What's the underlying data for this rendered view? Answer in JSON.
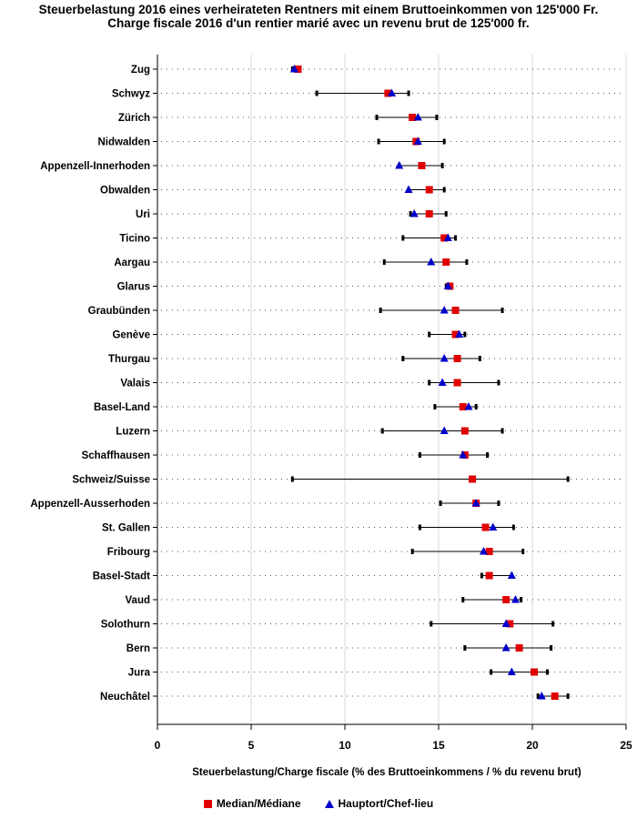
{
  "title_line1": "Steuerbelastung 2016 eines verheirateten Rentners mit einem Bruttoeinkommen von 125'000 Fr.",
  "title_line2": "Charge fiscale 2016 d'un rentier marié avec un revenu brut de 125'000 fr.",
  "colors": {
    "median": "#e00000",
    "capital": "#0000cc",
    "range": "#000000",
    "grid": "#d9d9d9"
  },
  "chart_data": {
    "type": "scatter",
    "xlabel": "Steuerbelastung/Charge fiscale (% des Bruttoeinkommens / % du revenu brut)",
    "ylabel": "",
    "xlim": [
      0,
      25
    ],
    "xticks": [
      0,
      5,
      10,
      15,
      20,
      25
    ],
    "legend": [
      {
        "name": "Median/Médiane",
        "marker": "square"
      },
      {
        "name": "Hauptort/Chef-lieu",
        "marker": "triangle"
      }
    ],
    "rows": [
      {
        "label": "Zug",
        "min": 7.2,
        "max": 7.6,
        "median": 7.5,
        "capital": 7.3
      },
      {
        "label": "Schwyz",
        "min": 8.5,
        "max": 13.4,
        "median": 12.3,
        "capital": 12.5
      },
      {
        "label": "Zürich",
        "min": 11.7,
        "max": 14.9,
        "median": 13.6,
        "capital": 13.9
      },
      {
        "label": "Nidwalden",
        "min": 11.8,
        "max": 15.3,
        "median": 13.8,
        "capital": 13.9
      },
      {
        "label": "Appenzell-Innerhoden",
        "min": 12.9,
        "max": 15.2,
        "median": 14.1,
        "capital": 12.9
      },
      {
        "label": "Obwalden",
        "min": 13.4,
        "max": 15.3,
        "median": 14.5,
        "capital": 13.4
      },
      {
        "label": "Uri",
        "min": 13.5,
        "max": 15.4,
        "median": 14.5,
        "capital": 13.7
      },
      {
        "label": "Ticino",
        "min": 13.1,
        "max": 15.9,
        "median": 15.3,
        "capital": 15.5
      },
      {
        "label": "Aargau",
        "min": 12.1,
        "max": 16.5,
        "median": 15.4,
        "capital": 14.6
      },
      {
        "label": "Glarus",
        "min": 15.4,
        "max": 15.7,
        "median": 15.6,
        "capital": 15.5
      },
      {
        "label": "Graubünden",
        "min": 11.9,
        "max": 18.4,
        "median": 15.9,
        "capital": 15.3
      },
      {
        "label": "Genève",
        "min": 14.5,
        "max": 16.4,
        "median": 15.9,
        "capital": 16.1
      },
      {
        "label": "Thurgau",
        "min": 13.1,
        "max": 17.2,
        "median": 16.0,
        "capital": 15.3
      },
      {
        "label": "Valais",
        "min": 14.5,
        "max": 18.2,
        "median": 16.0,
        "capital": 15.2
      },
      {
        "label": "Basel-Land",
        "min": 14.8,
        "max": 17.0,
        "median": 16.3,
        "capital": 16.6
      },
      {
        "label": "Luzern",
        "min": 12.0,
        "max": 18.4,
        "median": 16.4,
        "capital": 15.3
      },
      {
        "label": "Schaffhausen",
        "min": 14.0,
        "max": 17.6,
        "median": 16.4,
        "capital": 16.3
      },
      {
        "label": "Schweiz/Suisse",
        "min": 7.2,
        "max": 21.9,
        "median": 16.8,
        "capital": null
      },
      {
        "label": "Appenzell-Ausserhoden",
        "min": 15.1,
        "max": 18.2,
        "median": 17.0,
        "capital": 17.0
      },
      {
        "label": "St. Gallen",
        "min": 14.0,
        "max": 19.0,
        "median": 17.5,
        "capital": 17.9
      },
      {
        "label": "Fribourg",
        "min": 13.6,
        "max": 19.5,
        "median": 17.7,
        "capital": 17.4
      },
      {
        "label": "Basel-Stadt",
        "min": 17.3,
        "max": 18.9,
        "median": 17.7,
        "capital": 18.9
      },
      {
        "label": "Vaud",
        "min": 16.3,
        "max": 19.4,
        "median": 18.6,
        "capital": 19.1
      },
      {
        "label": "Solothurn",
        "min": 14.6,
        "max": 21.1,
        "median": 18.8,
        "capital": 18.6
      },
      {
        "label": "Bern",
        "min": 16.4,
        "max": 21.0,
        "median": 19.3,
        "capital": 18.6
      },
      {
        "label": "Jura",
        "min": 17.8,
        "max": 20.8,
        "median": 20.1,
        "capital": 18.9
      },
      {
        "label": "Neuchâtel",
        "min": 20.3,
        "max": 21.9,
        "median": 21.2,
        "capital": 20.5
      }
    ]
  }
}
